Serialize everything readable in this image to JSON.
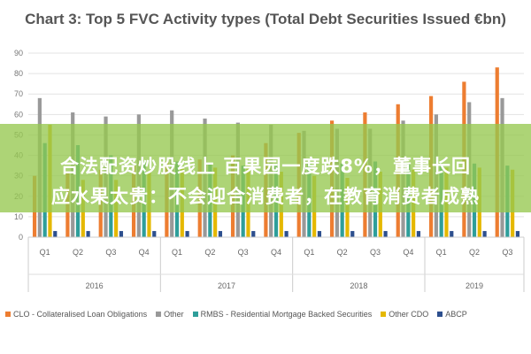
{
  "chart_data": {
    "type": "bar",
    "title": "Chart 3: Top 5 FVC Activity types (Total Debt Securities Issued €bn)",
    "quarters": [
      "Q1",
      "Q2",
      "Q3",
      "Q4",
      "Q1",
      "Q2",
      "Q3",
      "Q4",
      "Q1",
      "Q2",
      "Q3",
      "Q4",
      "Q1",
      "Q2",
      "Q3"
    ],
    "years": [
      {
        "label": "2016",
        "span": 4
      },
      {
        "label": "2017",
        "span": 4
      },
      {
        "label": "2018",
        "span": 4
      },
      {
        "label": "2019",
        "span": 3
      }
    ],
    "yticks": [
      "0",
      "10",
      "20",
      "30",
      "40",
      "50",
      "60",
      "70",
      "80",
      "90"
    ],
    "ylim": [
      0,
      90
    ],
    "grid": true,
    "legend_position": "bottom",
    "series": [
      {
        "name": "CLO - Collateralised Loan Obligations",
        "color": "#ed7d31",
        "values": [
          30,
          32,
          33,
          35,
          37,
          38,
          40,
          46,
          51,
          57,
          61,
          65,
          69,
          76,
          83
        ]
      },
      {
        "name": "Other",
        "color": "#999999",
        "values": [
          68,
          61,
          59,
          60,
          62,
          58,
          56,
          55,
          52,
          53,
          53,
          57,
          60,
          66,
          68
        ]
      },
      {
        "name": "RMBS - Residential Mortgage Backed Securities",
        "color": "#2e9e9a",
        "values": [
          46,
          45,
          40,
          37,
          37,
          36,
          35,
          36,
          36,
          36,
          37,
          36,
          36,
          36,
          35
        ]
      },
      {
        "name": "Other CDO",
        "color": "#e5b800",
        "values": [
          55,
          28,
          28,
          32,
          34,
          34,
          35,
          32,
          30,
          29,
          32,
          33,
          34,
          34,
          33
        ]
      },
      {
        "name": "ABCP",
        "color": "#2d4f8e",
        "values": [
          3,
          3,
          3,
          3,
          3,
          3,
          3,
          3,
          3,
          3,
          3,
          3,
          3,
          3,
          3
        ]
      }
    ]
  },
  "overlay": {
    "line1": "合法配资炒股线上 百果园一度跌8%，董事长回",
    "line2": "应水果太贵：不会迎合消费者，在教育消费者成熟"
  }
}
